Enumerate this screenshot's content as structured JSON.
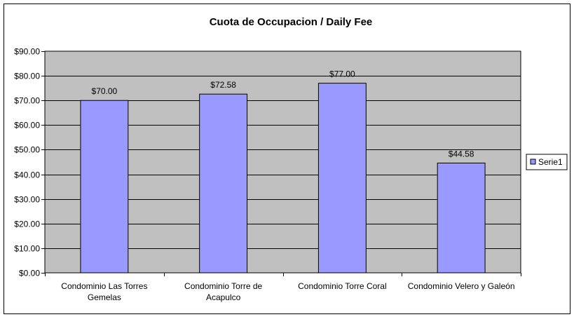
{
  "chart_data": {
    "type": "bar",
    "title": "Cuota de Occupacion / Daily Fee",
    "categories": [
      [
        "Condominio Las Torres",
        "Gemelas"
      ],
      [
        "Condominio Torre de",
        "Acapulco"
      ],
      [
        "Condominio Torre Coral"
      ],
      [
        "Condominio Velero y Galeón"
      ]
    ],
    "series": [
      {
        "name": "Serie1",
        "values": [
          70.0,
          72.58,
          77.0,
          44.58
        ],
        "data_labels": [
          "$70.00",
          "$72.58",
          "$77.00",
          "$44.58"
        ]
      }
    ],
    "ylim": [
      0,
      90
    ],
    "ytick_step": 10,
    "ytick_labels": [
      "$0.00",
      "$10.00",
      "$20.00",
      "$30.00",
      "$40.00",
      "$50.00",
      "$60.00",
      "$70.00",
      "$80.00",
      "$90.00"
    ],
    "xlabel": "",
    "ylabel": "",
    "grid": true,
    "legend_position": "right",
    "colors": {
      "bar_fill": "#9999ff",
      "bar_stroke": "#000000",
      "plot_background": "#c0c0c0",
      "gridline": "#000000",
      "frame": "#000000"
    }
  }
}
